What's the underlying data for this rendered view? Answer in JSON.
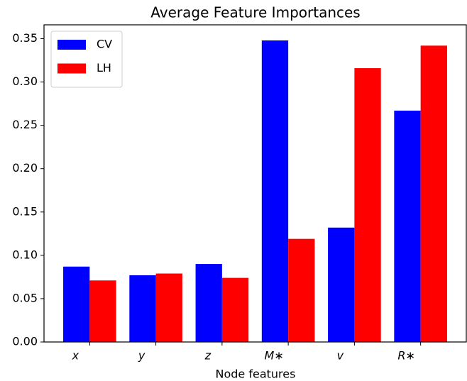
{
  "chart_data": {
    "type": "bar",
    "title": "Average Feature Importances",
    "x_label": "Node features",
    "categories": [
      "x",
      "y",
      "z",
      "M∗",
      "v",
      "R∗"
    ],
    "series": [
      {
        "name": "CV",
        "color": "#0000ff",
        "values": [
          0.087,
          0.077,
          0.09,
          0.348,
          0.132,
          0.267
        ]
      },
      {
        "name": "LH",
        "color": "#ff0000",
        "values": [
          0.071,
          0.079,
          0.074,
          0.119,
          0.316,
          0.342
        ]
      }
    ],
    "ylim": [
      0,
      0.366
    ],
    "yticks": [
      {
        "value": 0,
        "label": "0.00"
      },
      {
        "value": 0.05,
        "label": "0.05"
      },
      {
        "value": 0.1,
        "label": "0.10"
      },
      {
        "value": 0.15,
        "label": "0.15"
      },
      {
        "value": 0.2,
        "label": "0.20"
      },
      {
        "value": 0.25,
        "label": "0.25"
      },
      {
        "value": 0.3,
        "label": "0.30"
      },
      {
        "value": 0.35,
        "label": "0.35"
      }
    ],
    "legend": "upper left"
  }
}
